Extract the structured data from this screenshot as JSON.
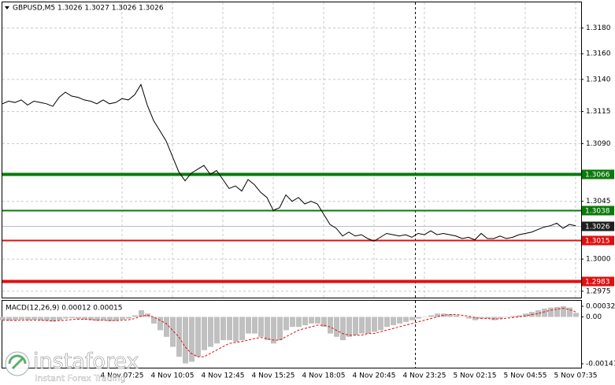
{
  "chart_data": [
    {
      "type": "line",
      "title": "GBPUSD,M5  1.3026 1.3027 1.3026 1.3026",
      "color": "#000000",
      "grid": true,
      "categories": [
        null,
        null,
        null,
        null,
        null,
        null,
        null,
        null,
        null,
        null,
        null,
        null,
        null,
        null,
        null,
        null,
        null,
        null,
        null,
        "4 Nov 07:25",
        null,
        null,
        null,
        null,
        null,
        null,
        null,
        "4 Nov 10:05",
        null,
        null,
        null,
        null,
        null,
        null,
        null,
        "4 Nov 12:45",
        null,
        null,
        null,
        null,
        null,
        null,
        null,
        "4 Nov 15:25",
        null,
        null,
        null,
        null,
        null,
        null,
        null,
        "4 Nov 18:05",
        null,
        null,
        null,
        null,
        null,
        null,
        null,
        "4 Nov 20:45",
        null,
        null,
        null,
        null,
        null,
        null,
        null,
        "4 Nov 23:25",
        null,
        null,
        null,
        null,
        null,
        null,
        null,
        "5 Nov 02:15",
        null,
        null,
        null,
        null,
        null,
        null,
        null,
        "5 Nov 04:55",
        null,
        null,
        null,
        null,
        null,
        null,
        null,
        "5 Nov 07:35"
      ],
      "values": [
        1.3121,
        1.3123,
        1.3122,
        1.3124,
        1.312,
        1.3123,
        1.3122,
        1.3121,
        1.3119,
        1.3126,
        1.313,
        1.3127,
        1.3126,
        1.3124,
        1.3123,
        1.3121,
        1.3124,
        1.3121,
        1.3122,
        1.3125,
        1.3124,
        1.3128,
        1.3136,
        1.312,
        1.3108,
        1.31,
        1.3092,
        1.308,
        1.3068,
        1.3061,
        1.3067,
        1.307,
        1.3073,
        1.3066,
        1.3069,
        1.3062,
        1.3055,
        1.3057,
        1.3053,
        1.3062,
        1.3058,
        1.3052,
        1.3048,
        1.3038,
        1.304,
        1.305,
        1.3045,
        1.3048,
        1.3043,
        1.3045,
        1.3043,
        1.3035,
        1.3027,
        1.3024,
        1.3018,
        1.3021,
        1.3018,
        1.3019,
        1.3016,
        1.3014,
        1.3017,
        1.302,
        1.3019,
        1.3018,
        1.3019,
        1.3017,
        1.302,
        1.3019,
        1.3022,
        1.3019,
        1.302,
        1.3019,
        1.3018,
        1.3016,
        1.3017,
        1.3015,
        1.302,
        1.3016,
        1.3016,
        1.3018,
        1.3016,
        1.3017,
        1.3019,
        1.302,
        1.3021,
        1.3023,
        1.3025,
        1.3026,
        1.3028,
        1.3024,
        1.3027,
        1.3026
      ],
      "ylim": [
        1.297,
        1.32
      ],
      "yticks": [
        {
          "value": 1.318,
          "label": "1.3180"
        },
        {
          "value": 1.316,
          "label": "1.3160"
        },
        {
          "value": 1.314,
          "label": "1.3140"
        },
        1.3115,
        {
          "value": 1.309,
          "label": "1.3090"
        },
        1.3045,
        {
          "value": 1.3,
          "label": "1.3000"
        },
        1.2975
      ],
      "levels": [
        {
          "value": 1.3066,
          "color": "#0b7a0b",
          "style": "thick"
        },
        {
          "value": 1.3038,
          "color": "#0b7a0b",
          "style": "thin"
        },
        {
          "value": 1.3026,
          "color": "#bdbdbd",
          "style": "price"
        },
        {
          "value": 1.3015,
          "color": "#e01010",
          "style": "thin"
        },
        {
          "value": 1.2983,
          "color": "#e01010",
          "style": "thick"
        }
      ]
    },
    {
      "type": "macd",
      "title": "MACD(12,26,9) 0.00012 0.00015",
      "color": "#c0c0c0",
      "values": [
        -0.0001,
        -0.00012,
        -0.0001,
        -8e-05,
        -0.0001,
        -9e-05,
        -0.00011,
        -0.00012,
        -0.00014,
        -0.0001,
        -5e-05,
        -4e-05,
        -6e-05,
        -8e-05,
        -0.0001,
        -0.00012,
        -0.0001,
        -0.00013,
        -0.00012,
        -8e-05,
        -5e-05,
        5e-05,
        0.0002,
        0.0001,
        -0.0002,
        -0.0004,
        -0.0006,
        -0.0009,
        -0.0012,
        -0.0014,
        -0.00135,
        -0.0012,
        -0.001,
        -0.0009,
        -0.0008,
        -0.0007,
        -0.0007,
        -0.00075,
        -0.0007,
        -0.0005,
        -0.0005,
        -0.0006,
        -0.0007,
        -0.0008,
        -0.0007,
        -0.0004,
        -0.0003,
        -0.0003,
        -0.00025,
        -0.0002,
        -0.0002,
        -0.0003,
        -0.0005,
        -0.0006,
        -0.0007,
        -0.0006,
        -0.00055,
        -0.0005,
        -0.0005,
        -0.00045,
        -0.0004,
        -0.0003,
        -0.00025,
        -0.0002,
        -0.00015,
        -0.0001,
        -5e-05,
        0,
        5e-05,
        0.0001,
        0.0001,
        8e-05,
        5e-05,
        0,
        -5e-05,
        -0.0001,
        -5e-05,
        -5e-05,
        -0.0001,
        -5e-05,
        0,
        3e-05,
        5e-05,
        0.0001,
        0.00015,
        0.0002,
        0.00025,
        0.00028,
        0.0003,
        0.00032,
        0.00028,
        0.00012
      ],
      "signal": {
        "color": "#e01010",
        "values": [
          -0.0001,
          -0.0001,
          -0.00011,
          -0.0001,
          -0.0001,
          -0.0001,
          -0.0001,
          -0.00011,
          -0.00012,
          -0.00011,
          -0.0001,
          -8e-05,
          -7e-05,
          -7e-05,
          -8e-05,
          -0.0001,
          -0.0001,
          -0.00011,
          -0.00011,
          -0.0001,
          -9e-05,
          -5e-05,
          2e-05,
          5e-05,
          0,
          -0.0001,
          -0.0002,
          -0.0004,
          -0.0006,
          -0.0009,
          -0.0011,
          -0.0012,
          -0.0012,
          -0.0011,
          -0.001,
          -0.0009,
          -0.0008,
          -0.00077,
          -0.00074,
          -0.0007,
          -0.00065,
          -0.00062,
          -0.00065,
          -0.0007,
          -0.0007,
          -0.0006,
          -0.0005,
          -0.0004,
          -0.00035,
          -0.0003,
          -0.00025,
          -0.00025,
          -0.0003,
          -0.0004,
          -0.0005,
          -0.00055,
          -0.00055,
          -0.00055,
          -0.0005,
          -0.0005,
          -0.00045,
          -0.0004,
          -0.00035,
          -0.0003,
          -0.00025,
          -0.0002,
          -0.00015,
          -0.0001,
          -5e-05,
          0,
          5e-05,
          7e-05,
          7e-05,
          5e-05,
          2e-05,
          -2e-05,
          -5e-05,
          -5e-05,
          -6e-05,
          -6e-05,
          -4e-05,
          -2e-05,
          0,
          3e-05,
          7e-05,
          0.0001,
          0.00015,
          0.0002,
          0.00023,
          0.00026,
          0.00022,
          0.00015
        ]
      },
      "ylim": [
        -0.00141,
        0.00032
      ],
      "yticks": [
        0.00032,
        {
          "value": 0,
          "label": "0.00"
        },
        -0.00141
      ]
    }
  ],
  "watermark": {
    "brand": "instaforex",
    "tagline": "Instant Forex Trading"
  }
}
